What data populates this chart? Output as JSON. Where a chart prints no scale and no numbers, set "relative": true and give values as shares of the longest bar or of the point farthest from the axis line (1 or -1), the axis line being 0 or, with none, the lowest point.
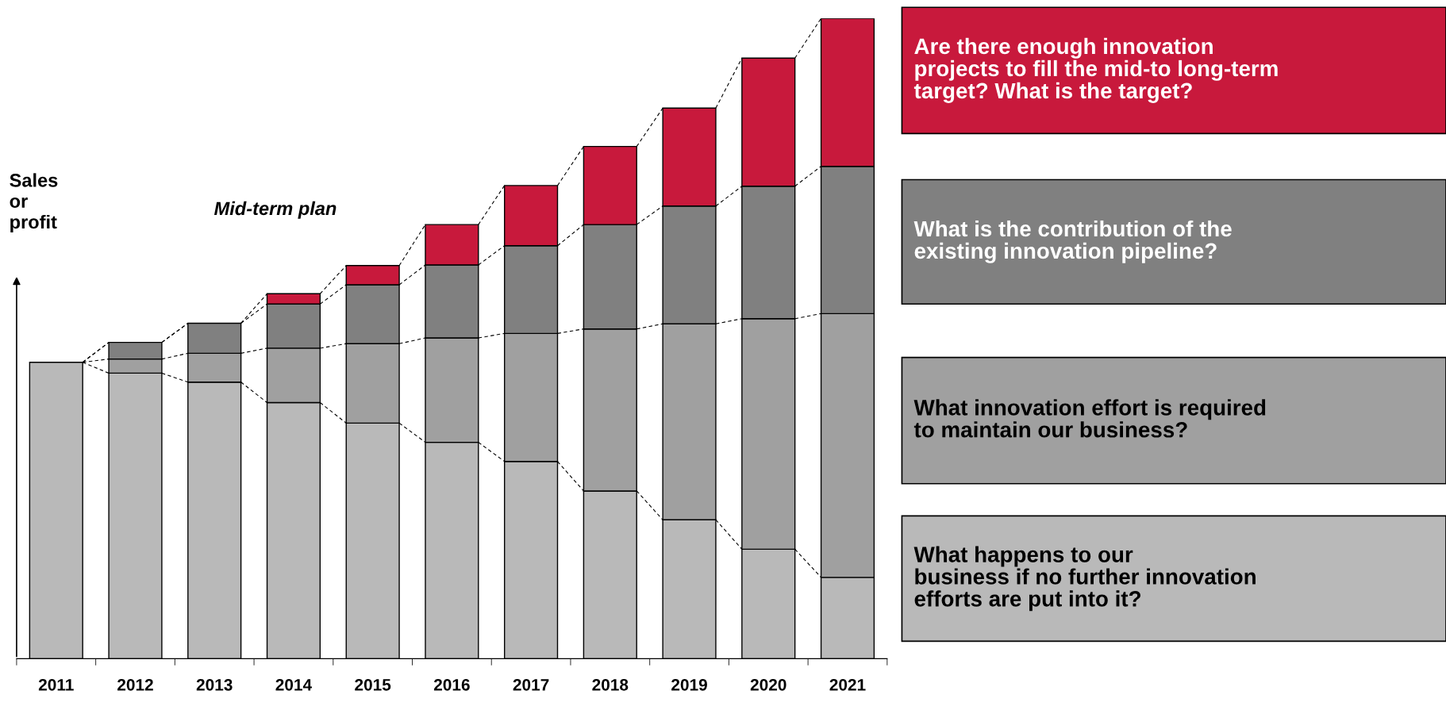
{
  "chart_data": {
    "type": "bar",
    "stacked": true,
    "relative": true,
    "ylabel": "Sales\nor\nprofit",
    "categories": [
      "2011",
      "2012",
      "2013",
      "2014",
      "2015",
      "2016",
      "2017",
      "2018",
      "2019",
      "2020",
      "2021"
    ],
    "series": [
      {
        "color": "#b9b9b9",
        "values": [
          0.463,
          0.446,
          0.432,
          0.4,
          0.368,
          0.338,
          0.308,
          0.262,
          0.217,
          0.171,
          0.127
        ]
      },
      {
        "color": "#a0a0a0",
        "values": [
          0,
          0.022,
          0.045,
          0.085,
          0.124,
          0.163,
          0.2,
          0.253,
          0.306,
          0.36,
          0.412
        ]
      },
      {
        "color": "#808080",
        "values": [
          0,
          0.026,
          0.047,
          0.069,
          0.092,
          0.114,
          0.137,
          0.163,
          0.184,
          0.207,
          0.23
        ]
      },
      {
        "color": "#c8193c",
        "values": [
          0,
          0,
          0,
          0.016,
          0.03,
          0.063,
          0.094,
          0.122,
          0.153,
          0.2,
          0.231
        ]
      }
    ],
    "annotations": [
      "Mid-term plan",
      "Are there enough innovation\nprojects to fill the mid-to long-term\ntarget? What is the target?",
      "What is the contribution of the\nexisting innovation pipeline?",
      "What innovation effort is required\nto maintain our business?",
      "What happens to our\nbusiness if no further innovation\nefforts are put into it?"
    ]
  }
}
